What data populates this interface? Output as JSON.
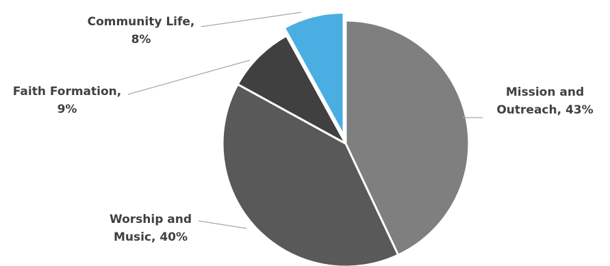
{
  "chart_data": {
    "type": "pie",
    "title": "",
    "start_angle_deg": 0,
    "direction": "clockwise",
    "slices": [
      {
        "name": "Mission and Outreach",
        "value": 43,
        "label_line1": "Mission and",
        "label_line2": "Outreach, 43%",
        "color": "#7f7f7f",
        "exploded": false
      },
      {
        "name": "Worship and Music",
        "value": 40,
        "label_line1": "Worship and",
        "label_line2": "Music, 40%",
        "color": "#595959",
        "exploded": false
      },
      {
        "name": "Faith Formation",
        "value": 9,
        "label_line1": "Faith Formation,",
        "label_line2": "9%",
        "color": "#404040",
        "exploded": false
      },
      {
        "name": "Community Life",
        "value": 8,
        "label_line1": "Community Life,",
        "label_line2": "8%",
        "color": "#4aaee2",
        "exploded": true
      }
    ],
    "legend": "none",
    "label_color": "#404040",
    "leader_line_color": "#a6a6a6"
  }
}
